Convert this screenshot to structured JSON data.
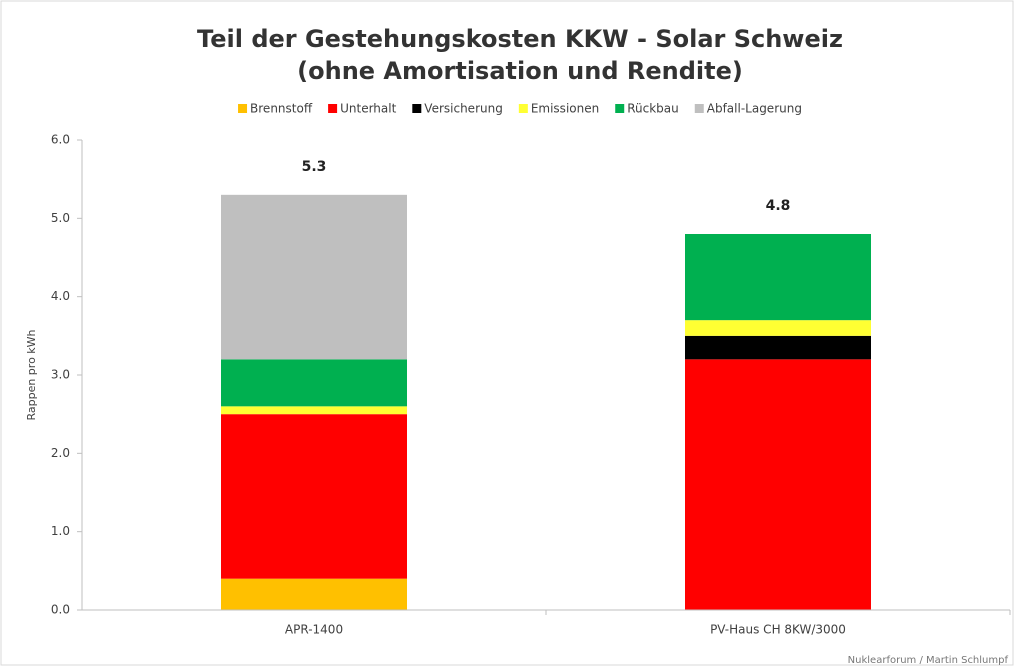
{
  "chart_data": {
    "type": "stacked_bar",
    "title": "Teil der Gestehungskosten KKW - Solar Schweiz",
    "subtitle": "(ohne Amortisation und Rendite)",
    "y_label": "Rappen pro kWh",
    "source": "Nuklearforum / Martin Schlumpf",
    "categories": [
      "APR-1400",
      "PV-Haus CH 8KW/3000"
    ],
    "series": [
      {
        "name": "Brennstoff",
        "color": "#ffc000",
        "values": [
          0.4,
          0
        ]
      },
      {
        "name": "Unterhalt",
        "color": "#ff0000",
        "values": [
          2.1,
          3.2
        ]
      },
      {
        "name": "Versicherung",
        "color": "#000000",
        "values": [
          0,
          0.3
        ]
      },
      {
        "name": "Emissionen",
        "color": "#ffff33",
        "values": [
          0.1,
          0.2
        ]
      },
      {
        "name": "Rückbau",
        "color": "#00b050",
        "values": [
          0.6,
          1.1
        ]
      },
      {
        "name": "Abfall-Lagerung",
        "color": "#bfbfbf",
        "values": [
          2.1,
          0
        ]
      }
    ],
    "totals": [
      5.3,
      4.8
    ],
    "ylim": [
      0,
      6
    ],
    "yticks": [
      {
        "value": 0,
        "label": "0.0"
      },
      {
        "value": 1,
        "label": "1.0"
      },
      {
        "value": 2,
        "label": "2.0"
      },
      {
        "value": 3,
        "label": "3.0"
      },
      {
        "value": 4,
        "label": "4.0"
      },
      {
        "value": 5,
        "label": "5.0"
      },
      {
        "value": 6,
        "label": "6.0"
      }
    ],
    "grid": false,
    "legend": "top"
  }
}
